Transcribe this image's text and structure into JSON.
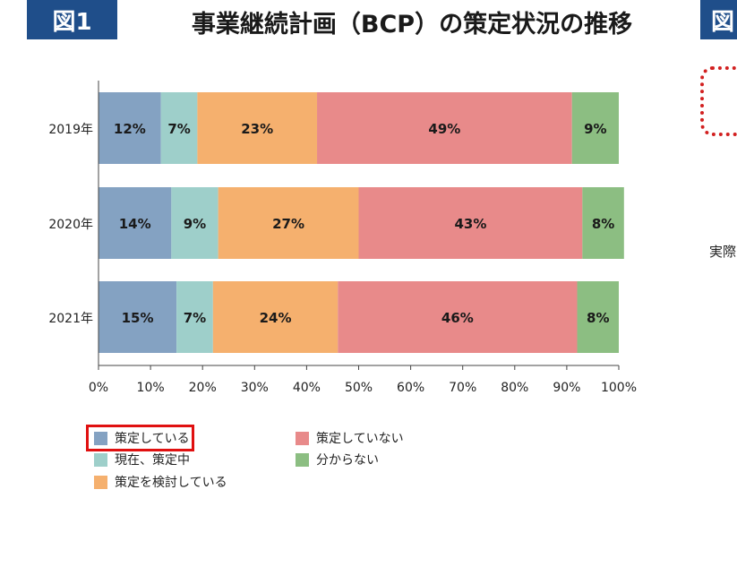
{
  "header": {
    "figure_label": "図1",
    "title": "事業継続計画（BCP）の策定状況の推移",
    "next_figure_label": "図",
    "next_text": "実際"
  },
  "colors": {
    "badge": "#1f4e8a",
    "highlight": "#e01010"
  },
  "chart_data": {
    "type": "bar",
    "orientation": "horizontal",
    "stacked": "percent",
    "categories": [
      "2019年",
      "2020年",
      "2021年"
    ],
    "series": [
      {
        "name": "策定している",
        "values": [
          12,
          14,
          15
        ],
        "color": "#84a2c2"
      },
      {
        "name": "現在、策定中",
        "values": [
          7,
          9,
          7
        ],
        "color": "#9ecfca"
      },
      {
        "name": "策定を検討している",
        "values": [
          23,
          27,
          24
        ],
        "color": "#f5b06e"
      },
      {
        "name": "策定していない",
        "values": [
          49,
          43,
          46
        ],
        "color": "#e88a8a"
      },
      {
        "name": "分からない",
        "values": [
          9,
          8,
          8
        ],
        "color": "#8cbe82"
      }
    ],
    "xlim": [
      0,
      100
    ],
    "x_ticks": [
      "0%",
      "10%",
      "20%",
      "30%",
      "40%",
      "50%",
      "60%",
      "70%",
      "80%",
      "90%",
      "100%"
    ],
    "grid": false,
    "legend_position": "bottom",
    "highlighted_series": "策定している"
  }
}
